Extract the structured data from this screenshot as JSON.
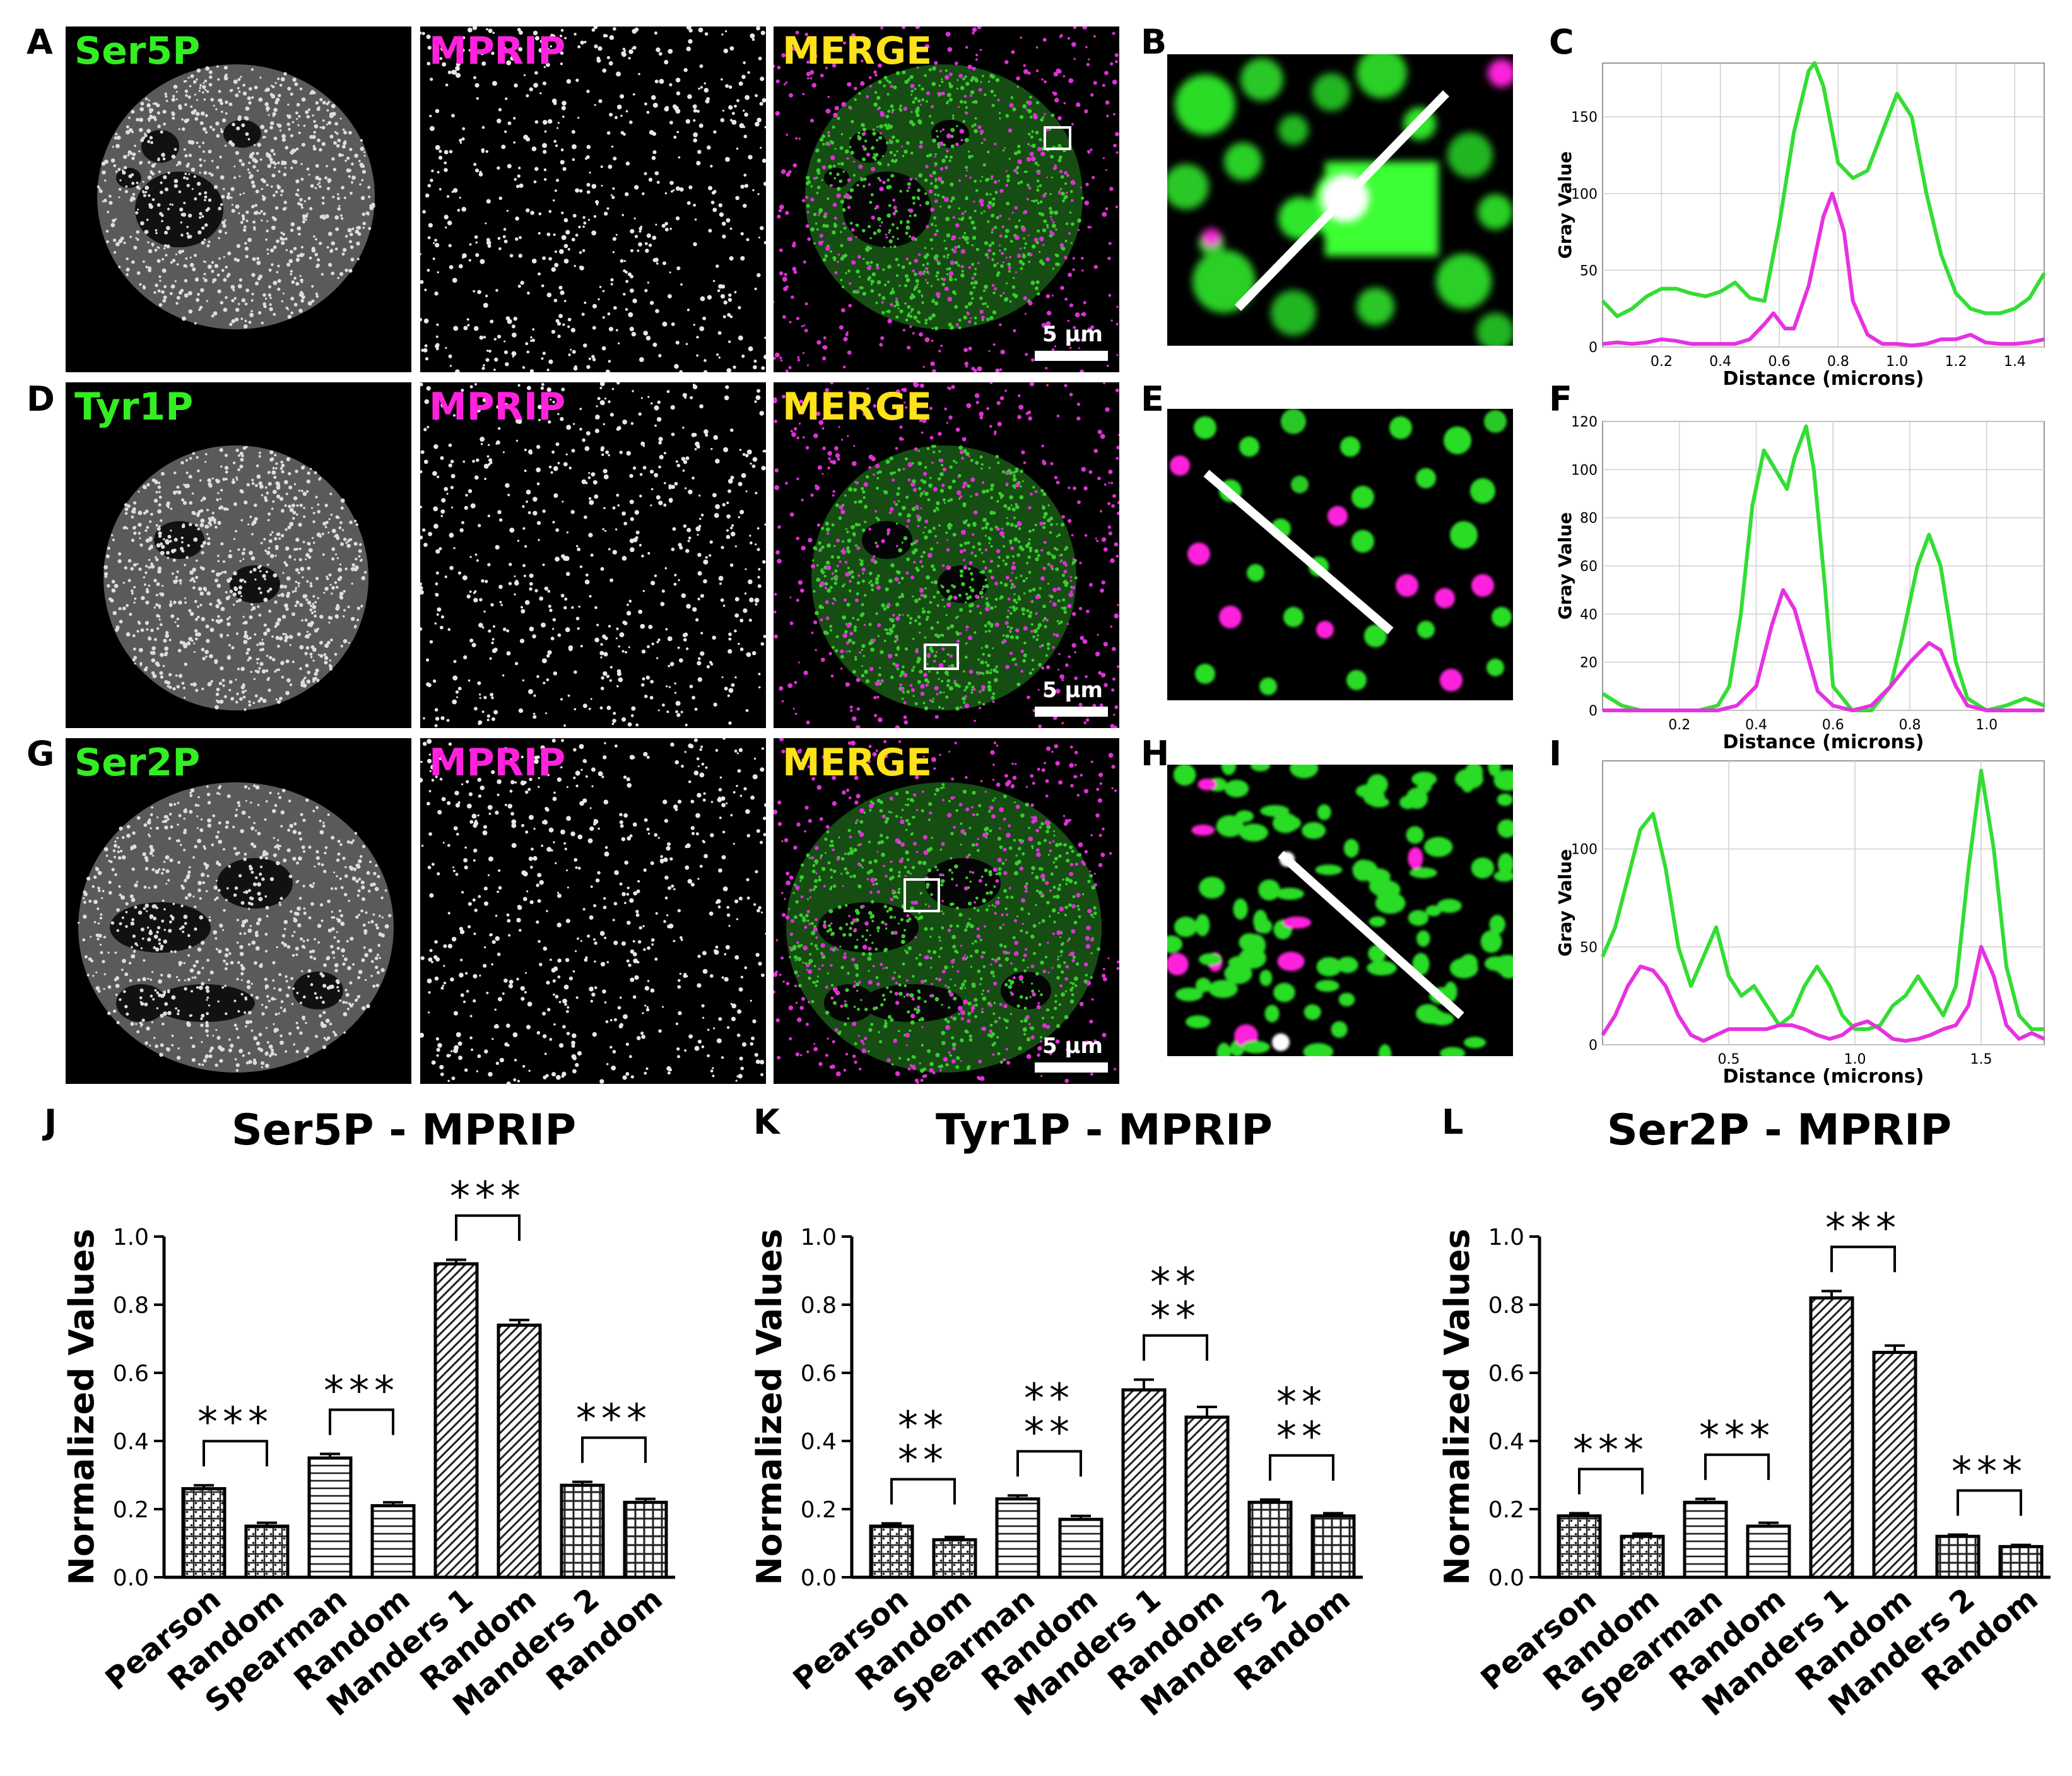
{
  "panel_letters": [
    "A",
    "B",
    "C",
    "D",
    "E",
    "F",
    "G",
    "H",
    "I",
    "J",
    "K",
    "L"
  ],
  "colors": {
    "green": "#33ee22",
    "magenta": "#ff22dd",
    "yellow": "#ffe21a",
    "line_green": "#33dd33",
    "line_magenta": "#e632e0"
  },
  "rows": [
    {
      "marker": "Ser5P",
      "partner": "MPRIP",
      "merge": "MERGE",
      "scale": "5 µm"
    },
    {
      "marker": "Tyr1P",
      "partner": "MPRIP",
      "merge": "MERGE",
      "scale": "5 µm"
    },
    {
      "marker": "Ser2P",
      "partner": "MPRIP",
      "merge": "MERGE",
      "scale": "5 µm"
    }
  ],
  "chart_data": [
    {
      "id": "C",
      "type": "line",
      "ylabel": "Gray Value",
      "xlabel": "Distance (microns)",
      "xlim": [
        0,
        1.5
      ],
      "ylim": [
        0,
        185
      ],
      "xticks": [
        "0.2",
        "0.4",
        "0.6",
        "0.8",
        "1.0",
        "1.2",
        "1.4"
      ],
      "xtick_values": [
        0.2,
        0.4,
        0.6,
        0.8,
        1.0,
        1.2,
        1.4
      ],
      "yticks": [
        "0",
        "50",
        "100",
        "150"
      ],
      "ytick_values": [
        0,
        50,
        100,
        150
      ],
      "series": [
        {
          "color": "green",
          "x": [
            0,
            0.05,
            0.1,
            0.15,
            0.2,
            0.25,
            0.3,
            0.35,
            0.4,
            0.45,
            0.5,
            0.55,
            0.6,
            0.65,
            0.7,
            0.72,
            0.75,
            0.8,
            0.85,
            0.9,
            0.95,
            1.0,
            1.05,
            1.1,
            1.15,
            1.2,
            1.25,
            1.3,
            1.35,
            1.4,
            1.45,
            1.5
          ],
          "y": [
            30,
            20,
            25,
            33,
            38,
            38,
            35,
            33,
            36,
            42,
            32,
            30,
            80,
            140,
            180,
            185,
            170,
            120,
            110,
            115,
            140,
            165,
            150,
            100,
            60,
            35,
            25,
            22,
            22,
            25,
            32,
            48
          ]
        },
        {
          "color": "magenta",
          "x": [
            0,
            0.05,
            0.1,
            0.15,
            0.2,
            0.25,
            0.3,
            0.35,
            0.4,
            0.45,
            0.5,
            0.55,
            0.58,
            0.62,
            0.65,
            0.7,
            0.75,
            0.78,
            0.82,
            0.85,
            0.9,
            0.95,
            1.0,
            1.05,
            1.1,
            1.15,
            1.2,
            1.25,
            1.3,
            1.35,
            1.4,
            1.45,
            1.5
          ],
          "y": [
            2,
            3,
            2,
            3,
            5,
            4,
            2,
            2,
            2,
            2,
            5,
            15,
            22,
            12,
            12,
            40,
            85,
            100,
            75,
            30,
            8,
            2,
            2,
            1,
            2,
            5,
            5,
            8,
            3,
            2,
            2,
            3,
            5
          ]
        }
      ]
    },
    {
      "id": "F",
      "type": "line",
      "ylabel": "Gray Value",
      "xlabel": "Distance (microns)",
      "xlim": [
        0,
        1.15
      ],
      "ylim": [
        0,
        120
      ],
      "xticks": [
        "0.2",
        "0.4",
        "0.6",
        "0.8",
        "1.0"
      ],
      "xtick_values": [
        0.2,
        0.4,
        0.6,
        0.8,
        1.0
      ],
      "yticks": [
        "0",
        "20",
        "40",
        "60",
        "80",
        "100",
        "120"
      ],
      "ytick_values": [
        0,
        20,
        40,
        60,
        80,
        100,
        120
      ],
      "series": [
        {
          "color": "green",
          "x": [
            0,
            0.05,
            0.1,
            0.15,
            0.2,
            0.25,
            0.3,
            0.33,
            0.36,
            0.39,
            0.42,
            0.45,
            0.48,
            0.5,
            0.53,
            0.55,
            0.58,
            0.6,
            0.65,
            0.7,
            0.75,
            0.78,
            0.82,
            0.85,
            0.88,
            0.92,
            0.95,
            1.0,
            1.05,
            1.1,
            1.15
          ],
          "y": [
            7,
            2,
            0,
            0,
            0,
            0,
            2,
            10,
            40,
            85,
            108,
            100,
            92,
            105,
            118,
            100,
            50,
            10,
            0,
            0,
            10,
            30,
            60,
            73,
            60,
            20,
            5,
            0,
            2,
            5,
            2
          ]
        },
        {
          "color": "magenta",
          "x": [
            0,
            0.05,
            0.1,
            0.15,
            0.2,
            0.25,
            0.3,
            0.35,
            0.4,
            0.44,
            0.47,
            0.5,
            0.53,
            0.56,
            0.6,
            0.65,
            0.7,
            0.75,
            0.8,
            0.85,
            0.88,
            0.92,
            0.95,
            1.0,
            1.05,
            1.1,
            1.15
          ],
          "y": [
            0,
            0,
            0,
            0,
            0,
            0,
            0,
            2,
            10,
            35,
            50,
            42,
            25,
            8,
            2,
            0,
            2,
            10,
            20,
            28,
            25,
            10,
            2,
            0,
            0,
            0,
            0
          ]
        }
      ]
    },
    {
      "id": "I",
      "type": "line",
      "ylabel": "Gray Value",
      "xlabel": "Distance (microns)",
      "xlim": [
        0,
        1.75
      ],
      "ylim": [
        0,
        145
      ],
      "xticks": [
        "0.5",
        "1.0",
        "1.5"
      ],
      "xtick_values": [
        0.5,
        1.0,
        1.5
      ],
      "yticks": [
        "0",
        "50",
        "100"
      ],
      "ytick_values": [
        0,
        50,
        100
      ],
      "series": [
        {
          "color": "green",
          "x": [
            0,
            0.05,
            0.1,
            0.15,
            0.2,
            0.25,
            0.3,
            0.35,
            0.4,
            0.45,
            0.5,
            0.55,
            0.6,
            0.65,
            0.7,
            0.75,
            0.8,
            0.85,
            0.9,
            0.95,
            1.0,
            1.05,
            1.1,
            1.15,
            1.2,
            1.25,
            1.3,
            1.35,
            1.4,
            1.45,
            1.5,
            1.55,
            1.6,
            1.65,
            1.7,
            1.75
          ],
          "y": [
            45,
            60,
            85,
            110,
            118,
            90,
            50,
            30,
            45,
            60,
            35,
            25,
            30,
            20,
            10,
            15,
            30,
            40,
            30,
            15,
            8,
            8,
            10,
            20,
            25,
            35,
            25,
            15,
            30,
            90,
            140,
            100,
            40,
            15,
            8,
            8
          ]
        },
        {
          "color": "magenta",
          "x": [
            0,
            0.05,
            0.1,
            0.15,
            0.2,
            0.25,
            0.3,
            0.35,
            0.4,
            0.45,
            0.5,
            0.55,
            0.6,
            0.65,
            0.7,
            0.75,
            0.8,
            0.85,
            0.9,
            0.95,
            1.0,
            1.05,
            1.1,
            1.15,
            1.2,
            1.25,
            1.3,
            1.35,
            1.4,
            1.45,
            1.5,
            1.55,
            1.6,
            1.65,
            1.7,
            1.75
          ],
          "y": [
            5,
            15,
            30,
            40,
            38,
            30,
            15,
            5,
            2,
            5,
            8,
            8,
            8,
            8,
            10,
            10,
            8,
            5,
            3,
            5,
            10,
            12,
            8,
            3,
            2,
            3,
            5,
            8,
            10,
            20,
            50,
            35,
            10,
            3,
            6,
            3
          ]
        }
      ]
    },
    {
      "id": "J",
      "type": "bar",
      "title": "Ser5P - MPRIP",
      "ylabel": "Normalized Values",
      "ylim": [
        0,
        1.0
      ],
      "yticks": [
        "0.0",
        "0.2",
        "0.4",
        "0.6",
        "0.8",
        "1.0"
      ],
      "categories": [
        "Pearson",
        "Random",
        "Spearman",
        "Random",
        "Manders 1",
        "Random",
        "Manders 2",
        "Random"
      ],
      "values": [
        0.26,
        0.15,
        0.35,
        0.21,
        0.92,
        0.74,
        0.27,
        0.22
      ],
      "errors": [
        0.01,
        0.01,
        0.012,
        0.01,
        0.012,
        0.015,
        0.01,
        0.01
      ],
      "patterns": [
        "dots",
        "dots",
        "hlines",
        "hlines",
        "diag",
        "diag",
        "grid",
        "grid"
      ],
      "significance": [
        "***",
        "***",
        "***",
        "***"
      ]
    },
    {
      "id": "K",
      "type": "bar",
      "title": "Tyr1P - MPRIP",
      "ylabel": "Normalized Values",
      "ylim": [
        0,
        1.0
      ],
      "yticks": [
        "0.0",
        "0.2",
        "0.4",
        "0.6",
        "0.8",
        "1.0"
      ],
      "categories": [
        "Pearson",
        "Random",
        "Spearman",
        "Random",
        "Manders 1",
        "Random",
        "Manders 2",
        "Random"
      ],
      "values": [
        0.15,
        0.11,
        0.23,
        0.17,
        0.55,
        0.47,
        0.22,
        0.18
      ],
      "errors": [
        0.008,
        0.008,
        0.01,
        0.01,
        0.03,
        0.03,
        0.008,
        0.008
      ],
      "patterns": [
        "dots",
        "dots",
        "hlines",
        "hlines",
        "diag",
        "diag",
        "grid",
        "grid"
      ],
      "significance": [
        "****",
        "****",
        "****",
        "****"
      ]
    },
    {
      "id": "L",
      "type": "bar",
      "title": "Ser2P - MPRIP",
      "ylabel": "Normalized Values",
      "ylim": [
        0,
        1.0
      ],
      "yticks": [
        "0.0",
        "0.2",
        "0.4",
        "0.6",
        "0.8",
        "1.0"
      ],
      "categories": [
        "Pearson",
        "Random",
        "Spearman",
        "Random",
        "Manders 1",
        "Random",
        "Manders 2",
        "Random"
      ],
      "values": [
        0.18,
        0.12,
        0.22,
        0.15,
        0.82,
        0.66,
        0.12,
        0.09
      ],
      "errors": [
        0.008,
        0.008,
        0.01,
        0.01,
        0.02,
        0.02,
        0.005,
        0.005
      ],
      "patterns": [
        "dots",
        "dots",
        "hlines",
        "hlines",
        "diag",
        "diag",
        "grid",
        "grid"
      ],
      "significance": [
        "***",
        "***",
        "***",
        "***"
      ]
    }
  ]
}
